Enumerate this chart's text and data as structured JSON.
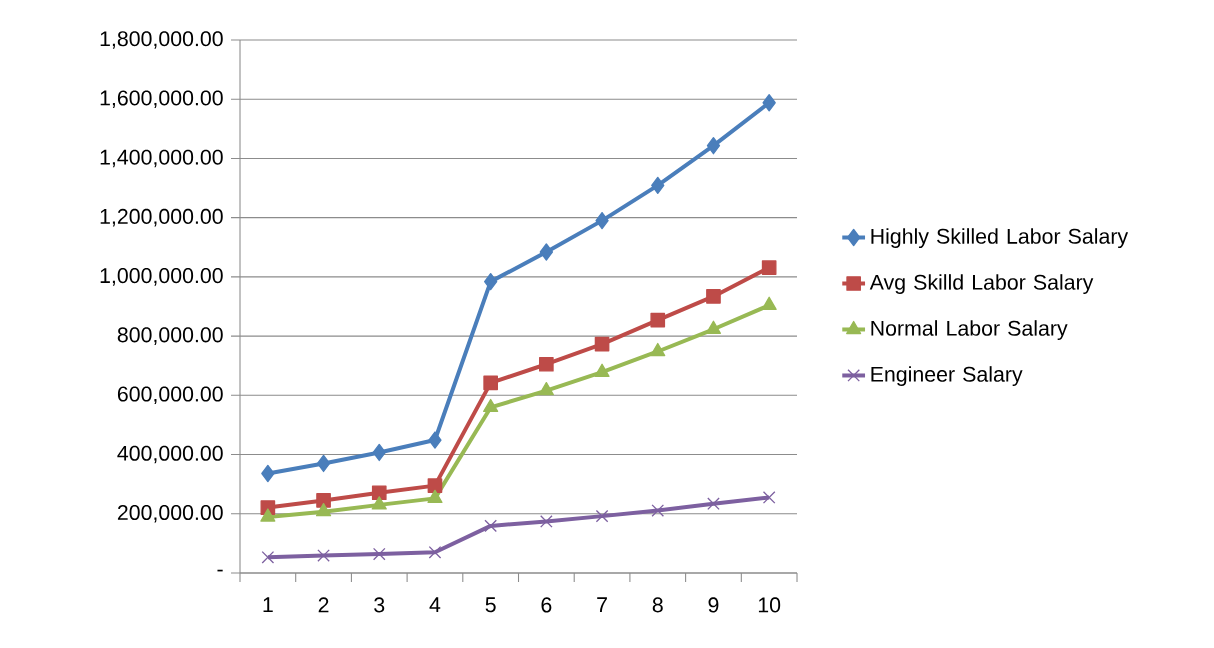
{
  "chart_data": {
    "type": "line",
    "categories": [
      "1",
      "2",
      "3",
      "4",
      "5",
      "6",
      "7",
      "8",
      "9",
      "10"
    ],
    "series": [
      {
        "name": "Highly Skilled Labor Salary",
        "color": "#4a7ebb",
        "marker": "diamond",
        "values": [
          336000,
          370000,
          407000,
          449000,
          984000,
          1084000,
          1190000,
          1309000,
          1443000,
          1588000
        ]
      },
      {
        "name": "Avg Skilld Labor Salary",
        "color": "#be4b48",
        "marker": "square",
        "values": [
          221000,
          245000,
          271000,
          295000,
          642000,
          705000,
          773000,
          854000,
          934000,
          1031000
        ]
      },
      {
        "name": "Normal Labor Salary",
        "color": "#98b954",
        "marker": "triangle",
        "values": [
          189000,
          207000,
          230000,
          252000,
          559000,
          616000,
          678000,
          748000,
          823000,
          904000
        ]
      },
      {
        "name": "Engineer Salary",
        "color": "#7d60a0",
        "marker": "cross",
        "values": [
          53000,
          59000,
          64000,
          70000,
          159000,
          174000,
          192000,
          211000,
          234000,
          255000
        ]
      }
    ],
    "ylim": [
      0,
      1800000
    ],
    "yticks": [
      {
        "value": 0,
        "label": "-"
      },
      {
        "value": 200000,
        "label": "200,000.00"
      },
      {
        "value": 400000,
        "label": "400,000.00"
      },
      {
        "value": 600000,
        "label": "600,000.00"
      },
      {
        "value": 800000,
        "label": "800,000.00"
      },
      {
        "value": 1000000,
        "label": "1,000,000.00"
      },
      {
        "value": 1200000,
        "label": "1,200,000.00"
      },
      {
        "value": 1400000,
        "label": "1,400,000.00"
      },
      {
        "value": 1600000,
        "label": "1,600,000.00"
      },
      {
        "value": 1800000,
        "label": "1,800,000.00"
      }
    ],
    "grid": "y",
    "legend": "right"
  }
}
